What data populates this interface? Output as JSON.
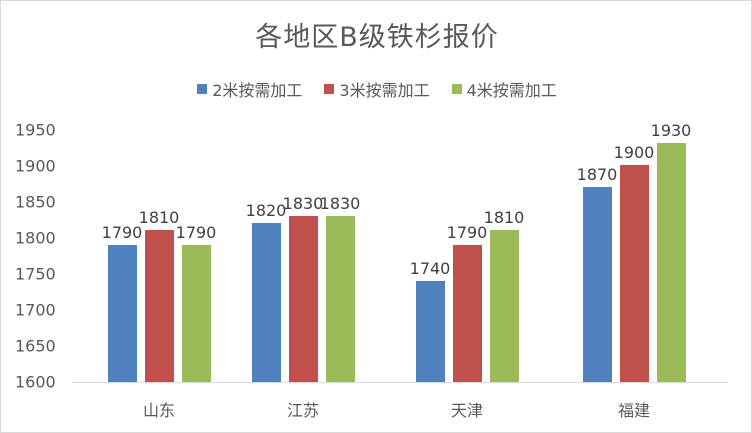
{
  "chart_data": {
    "type": "bar",
    "title": "各地区B级铁杉报价",
    "categories": [
      "山东",
      "江苏",
      "天津",
      "福建"
    ],
    "series": [
      {
        "name": "2米按需加工",
        "color": "#4f81bd",
        "values": [
          1790,
          1820,
          1740,
          1870
        ]
      },
      {
        "name": "3米按需加工",
        "color": "#c0504d",
        "values": [
          1810,
          1830,
          1790,
          1900
        ]
      },
      {
        "name": "4米按需加工",
        "color": "#9bbb59",
        "values": [
          1790,
          1830,
          1810,
          1930
        ]
      }
    ],
    "xlabel": "",
    "ylabel": "",
    "ylim": [
      1600,
      1950
    ],
    "yticks": [
      "1950",
      "1900",
      "1850",
      "1800",
      "1750",
      "1700",
      "1650",
      "1600"
    ],
    "grid": false,
    "legend_position": "top",
    "data_labels": true
  }
}
